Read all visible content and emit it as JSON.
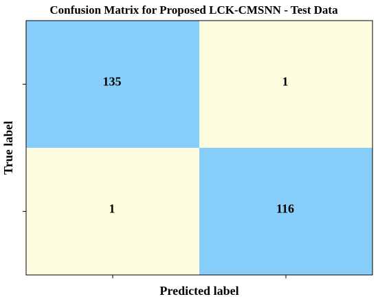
{
  "chart_data": {
    "type": "heatmap",
    "title": "Confusion Matrix for Proposed LCK-CMSNN - Test Data",
    "xlabel": "Predicted label",
    "ylabel": "True label",
    "matrix": [
      [
        135,
        1
      ],
      [
        1,
        116
      ]
    ],
    "x_tick_labels": [
      "",
      ""
    ],
    "y_tick_labels": [
      "",
      ""
    ],
    "grid": false,
    "colors": {
      "high": "#87cefa",
      "low": "#fffde0"
    }
  }
}
